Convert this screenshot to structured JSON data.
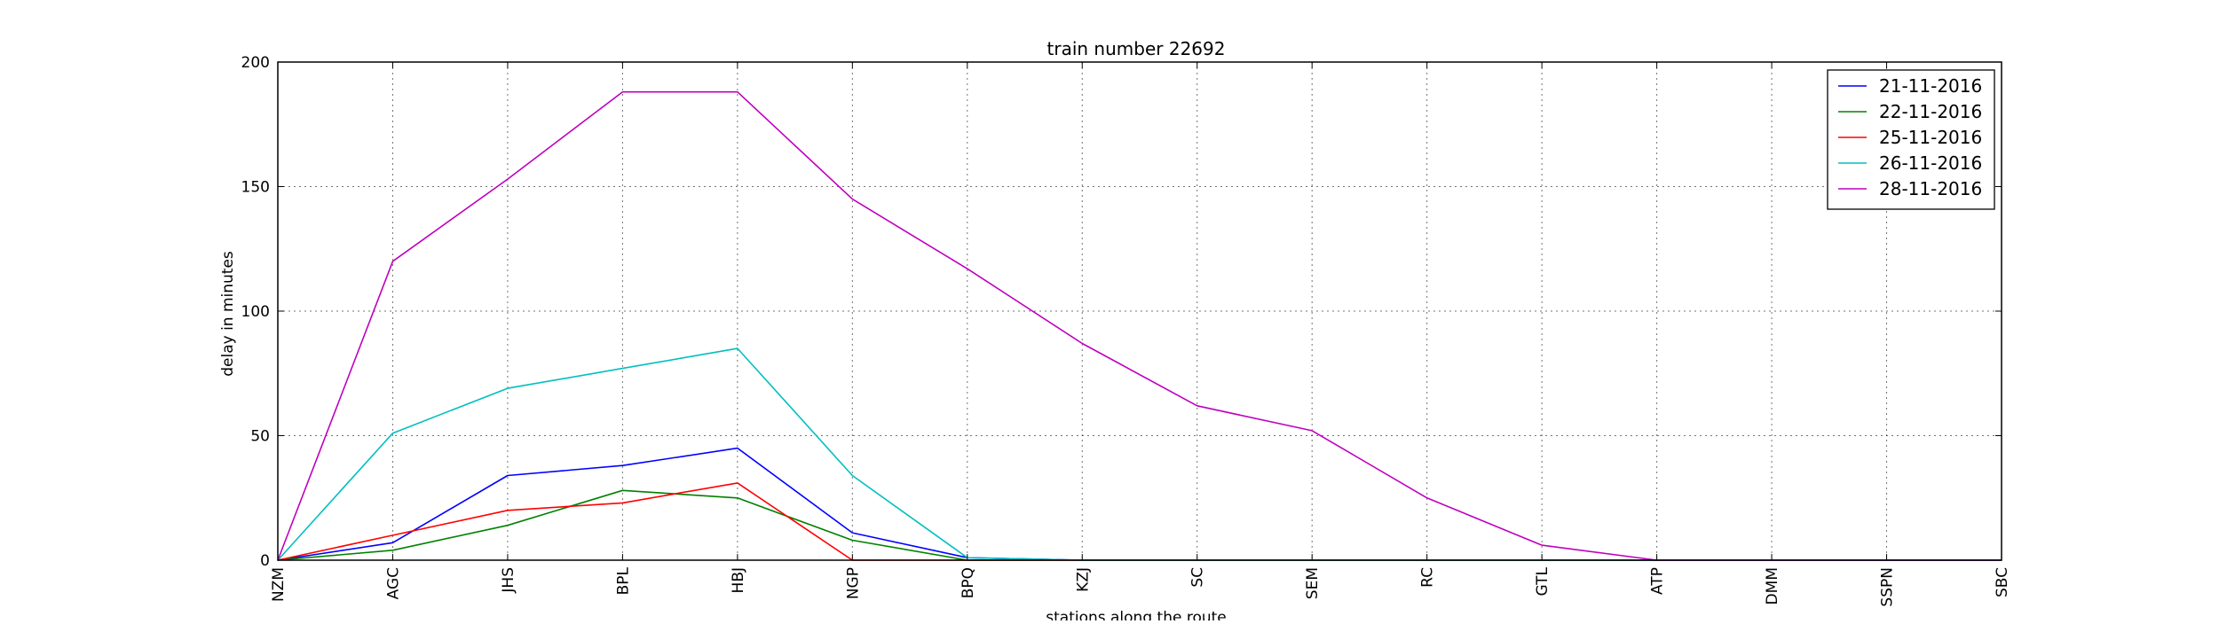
{
  "chart_data": {
    "type": "line",
    "title": "train number 22692",
    "xlabel": "stations along the route",
    "ylabel": "delay in minutes",
    "categories": [
      "NZM",
      "AGC",
      "JHS",
      "BPL",
      "HBJ",
      "NGP",
      "BPQ",
      "KZJ",
      "SC",
      "SEM",
      "RC",
      "GTL",
      "ATP",
      "DMM",
      "SSPN",
      "SBC"
    ],
    "ylim": [
      0,
      200
    ],
    "yticks": [
      0,
      50,
      100,
      150,
      200
    ],
    "grid": true,
    "legend_position": "top-right",
    "series": [
      {
        "name": "21-11-2016",
        "color": "#0000ff",
        "values": [
          0,
          7,
          34,
          38,
          45,
          11,
          1,
          0,
          0,
          0,
          0,
          0,
          0,
          0,
          0,
          0
        ]
      },
      {
        "name": "22-11-2016",
        "color": "#008000",
        "values": [
          0,
          4,
          14,
          28,
          25,
          8,
          0,
          0,
          0,
          0,
          0,
          0,
          0,
          0,
          0,
          0
        ]
      },
      {
        "name": "25-11-2016",
        "color": "#ff0000",
        "values": [
          0,
          10,
          20,
          23,
          31,
          0,
          0,
          0,
          0,
          0,
          0,
          0,
          0,
          0,
          0,
          0
        ]
      },
      {
        "name": "26-11-2016",
        "color": "#00bfbf",
        "values": [
          0,
          51,
          69,
          77,
          85,
          34,
          1,
          0,
          0,
          0,
          0,
          0,
          0,
          0,
          0,
          0
        ]
      },
      {
        "name": "28-11-2016",
        "color": "#bf00bf",
        "values": [
          0,
          120,
          153,
          188,
          188,
          145,
          117,
          87,
          62,
          52,
          25,
          6,
          0,
          0,
          0,
          0
        ]
      }
    ]
  }
}
